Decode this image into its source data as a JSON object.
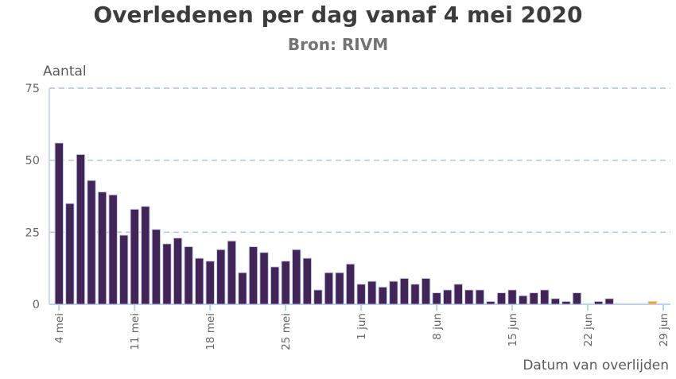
{
  "title": "Overledenen per dag vanaf 4 mei 2020",
  "subtitle": "Bron: RIVM",
  "y_axis_label": "Aantal",
  "x_axis_label": "Datum van overlijden",
  "chart_data": {
    "type": "bar",
    "title": "Overledenen per dag vanaf 4 mei 2020",
    "subtitle": "Bron: RIVM",
    "xlabel": "Datum van overlijden",
    "ylabel": "Aantal",
    "ylim": [
      0,
      75
    ],
    "yticks": [
      0,
      25,
      50,
      75
    ],
    "grid": "horizontal-dashed",
    "legend": "none",
    "x_tick_labels": [
      "4 mei",
      "11 mei",
      "18 mei",
      "25 mei",
      "1 jun",
      "8 jun",
      "15 jun",
      "22 jun",
      "29 jun"
    ],
    "x_tick_day_index": [
      0,
      7,
      14,
      21,
      28,
      35,
      42,
      49,
      56
    ],
    "categories": [
      "4 mei",
      "5 mei",
      "6 mei",
      "7 mei",
      "8 mei",
      "9 mei",
      "10 mei",
      "11 mei",
      "12 mei",
      "13 mei",
      "14 mei",
      "15 mei",
      "16 mei",
      "17 mei",
      "18 mei",
      "19 mei",
      "20 mei",
      "21 mei",
      "22 mei",
      "23 mei",
      "24 mei",
      "25 mei",
      "26 mei",
      "27 mei",
      "28 mei",
      "29 mei",
      "30 mei",
      "31 mei",
      "1 jun",
      "2 jun",
      "3 jun",
      "4 jun",
      "5 jun",
      "6 jun",
      "7 jun",
      "8 jun",
      "9 jun",
      "10 jun",
      "11 jun",
      "12 jun",
      "13 jun",
      "14 jun",
      "15 jun",
      "16 jun",
      "17 jun",
      "18 jun",
      "19 jun",
      "20 jun",
      "21 jun",
      "22 jun",
      "23 jun",
      "24 jun",
      "25 jun",
      "26 jun",
      "27 jun",
      "28 jun"
    ],
    "values": [
      56,
      35,
      52,
      43,
      39,
      38,
      24,
      33,
      34,
      26,
      21,
      23,
      20,
      16,
      15,
      19,
      22,
      11,
      20,
      18,
      13,
      15,
      19,
      16,
      5,
      11,
      11,
      14,
      7,
      8,
      6,
      8,
      9,
      7,
      9,
      4,
      5,
      7,
      5,
      5,
      1,
      4,
      5,
      3,
      4,
      5,
      2,
      1,
      4,
      0,
      1,
      2,
      0,
      0,
      0,
      1
    ],
    "colors": {
      "bar": "#412458",
      "bar_stroke": "#ccd3e6",
      "highlight_last_bar": "#f4a41d",
      "gridline": "#b3cbe4",
      "axis_line": "#bdd2e8",
      "tick_text": "#666666"
    },
    "highlight_last": true
  }
}
